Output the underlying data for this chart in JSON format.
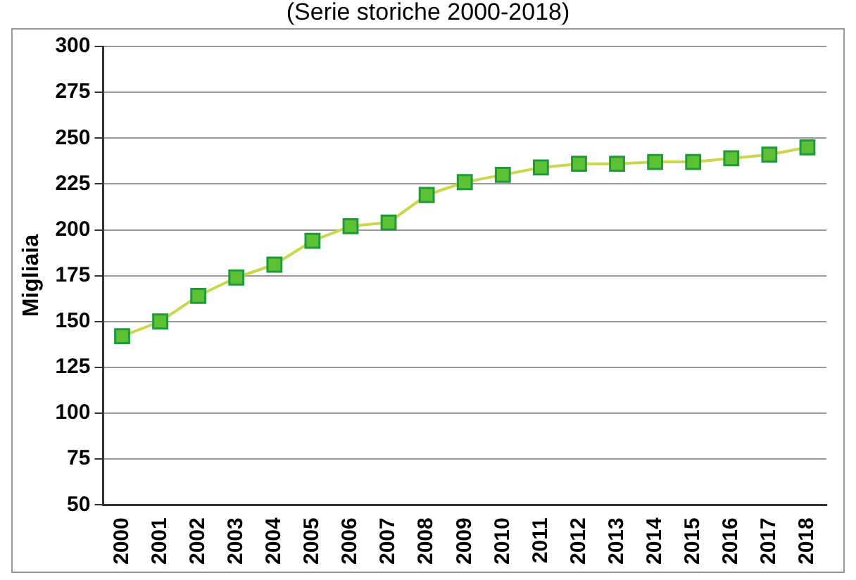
{
  "chart_data": {
    "type": "line",
    "title": "(Serie storiche 2000-2018)",
    "ylabel": "Migliaia",
    "categories": [
      "2000",
      "2001",
      "2002",
      "2003",
      "2004",
      "2005",
      "2006",
      "2007",
      "2008",
      "2009",
      "2010",
      "2011",
      "2012",
      "2013",
      "2014",
      "2015",
      "2016",
      "2017",
      "2018"
    ],
    "series": [
      {
        "color": "#5cc234",
        "values": [
          142,
          150,
          164,
          174,
          181,
          194,
          202,
          204,
          219,
          226,
          230,
          234,
          236,
          236,
          237,
          237,
          239,
          241,
          245
        ]
      }
    ],
    "ylim": [
      50,
      300
    ],
    "yticks": [
      50,
      75,
      100,
      125,
      150,
      175,
      200,
      225,
      250,
      275,
      300
    ],
    "grid": "y",
    "legend": false,
    "marker": "square",
    "line_style": "solid"
  }
}
